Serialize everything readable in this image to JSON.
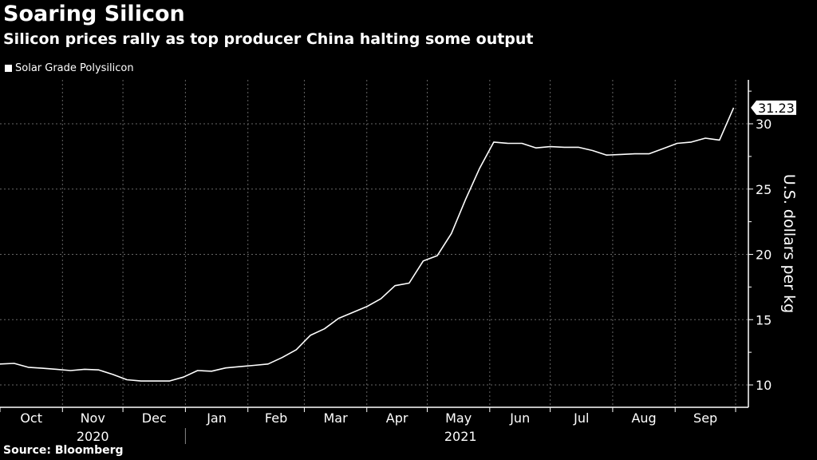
{
  "title": "Soaring Silicon",
  "subtitle": "Silicon prices rally as top producer China halting some output",
  "source": "Source: Bloomberg",
  "colors": {
    "background": "#000000",
    "line": "#ffffff",
    "grid": "#666666"
  },
  "chart_data": {
    "type": "line",
    "title": "Soaring Silicon",
    "subtitle": "Silicon prices rally as top producer China halting some output",
    "ylabel": "U.S. dollars per kg",
    "xlabel": "",
    "ylim": [
      8.5,
      32.5
    ],
    "xlim": [
      "2020-10-01",
      "2021-10-08"
    ],
    "yticks": [
      10,
      15,
      20,
      25,
      30
    ],
    "xtick_labels": [
      "Oct",
      "Nov",
      "Dec",
      "Jan",
      "Feb",
      "Mar",
      "Apr",
      "May",
      "Jun",
      "Jul",
      "Aug",
      "Sep"
    ],
    "year_labels": [
      "2020",
      "2021"
    ],
    "grid": true,
    "legend_placement": "top-left",
    "y_axis_side": "right",
    "last_value_label": "31.23",
    "series": [
      {
        "name": "Solar Grade Polysilicon",
        "x": [
          "2020-10-01",
          "2020-10-08",
          "2020-10-15",
          "2020-10-22",
          "2020-10-29",
          "2020-11-05",
          "2020-11-12",
          "2020-11-19",
          "2020-11-26",
          "2020-12-03",
          "2020-12-10",
          "2020-12-17",
          "2020-12-24",
          "2020-12-31",
          "2021-01-07",
          "2021-01-14",
          "2021-01-21",
          "2021-01-28",
          "2021-02-04",
          "2021-02-11",
          "2021-02-18",
          "2021-02-25",
          "2021-03-04",
          "2021-03-11",
          "2021-03-18",
          "2021-03-25",
          "2021-04-01",
          "2021-04-08",
          "2021-04-15",
          "2021-04-22",
          "2021-04-29",
          "2021-05-06",
          "2021-05-13",
          "2021-05-20",
          "2021-05-27",
          "2021-06-03",
          "2021-06-10",
          "2021-06-17",
          "2021-06-24",
          "2021-07-01",
          "2021-07-08",
          "2021-07-15",
          "2021-07-22",
          "2021-07-29",
          "2021-08-05",
          "2021-08-12",
          "2021-08-19",
          "2021-08-26",
          "2021-09-02",
          "2021-09-09",
          "2021-09-16",
          "2021-09-23",
          "2021-09-30"
        ],
        "values": [
          11.6,
          11.65,
          11.35,
          11.28,
          11.2,
          11.1,
          11.2,
          11.15,
          10.8,
          10.4,
          10.3,
          10.3,
          10.3,
          10.6,
          11.1,
          11.05,
          11.3,
          11.4,
          11.5,
          11.6,
          12.1,
          12.7,
          13.8,
          14.3,
          15.1,
          15.55,
          16.0,
          16.6,
          17.6,
          17.8,
          19.5,
          19.9,
          21.6,
          24.2,
          26.6,
          28.6,
          28.5,
          28.5,
          28.15,
          28.25,
          28.2,
          28.2,
          27.95,
          27.6,
          27.65,
          27.7,
          27.7,
          28.1,
          28.5,
          28.6,
          28.9,
          28.75,
          31.23
        ]
      }
    ]
  }
}
